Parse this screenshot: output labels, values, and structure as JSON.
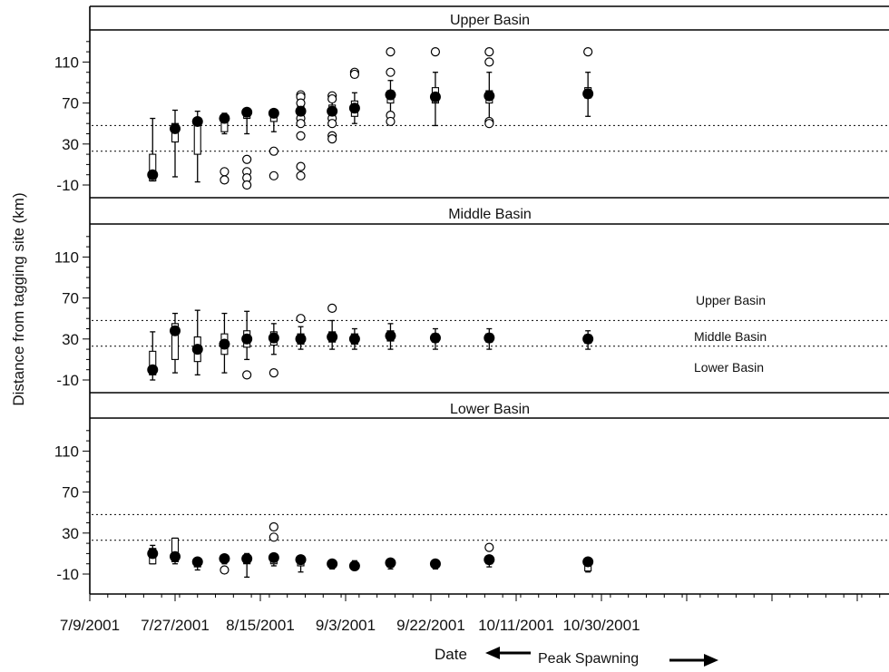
{
  "chart_data": {
    "type": "box",
    "ylabel": "Distance from tagging site (km)",
    "xlabel": "Date",
    "x_annotation": "Peak Spawning",
    "x_ticks": [
      "7/9/2001",
      "7/27/2001",
      "8/15/2001",
      "9/3/2001",
      "9/22/2001",
      "10/11/2001",
      "10/30/2001"
    ],
    "y_ticks": [
      -10,
      30,
      70,
      110
    ],
    "reference_lines": {
      "upper_boundary_km": 48,
      "lower_boundary_km": 23
    },
    "reference_labels": [
      "Upper Basin",
      "Middle Basin",
      "Lower Basin"
    ],
    "panels": [
      {
        "title": "Upper Basin",
        "points": [
          {
            "date": "2001-07-23",
            "median": 0,
            "q1": -6,
            "q3": 20,
            "wlo": -6,
            "whi": 55,
            "out": []
          },
          {
            "date": "2001-07-28",
            "median": 45,
            "q1": 32,
            "q3": 50,
            "wlo": -2,
            "whi": 63,
            "out": []
          },
          {
            "date": "2001-08-02",
            "median": 52,
            "q1": 20,
            "q3": 55,
            "wlo": -7,
            "whi": 62,
            "out": []
          },
          {
            "date": "2001-08-08",
            "median": 55,
            "q1": 42,
            "q3": 57,
            "wlo": 40,
            "whi": 60,
            "out": [
              3,
              -5
            ]
          },
          {
            "date": "2001-08-13",
            "median": 61,
            "q1": 55,
            "q3": 63,
            "wlo": 40,
            "whi": 64,
            "out": [
              15,
              3,
              -3,
              -10
            ]
          },
          {
            "date": "2001-08-19",
            "median": 60,
            "q1": 52,
            "q3": 62,
            "wlo": 42,
            "whi": 63,
            "out": [
              23,
              -1
            ]
          },
          {
            "date": "2001-08-25",
            "median": 62,
            "q1": 55,
            "q3": 68,
            "wlo": 50,
            "whi": 75,
            "out": [
              78,
              76,
              70,
              55,
              50,
              38,
              8,
              -1
            ]
          },
          {
            "date": "2001-09-01",
            "median": 62,
            "q1": 55,
            "q3": 68,
            "wlo": 50,
            "whi": 75,
            "out": [
              77,
              74,
              55,
              50,
              38,
              35
            ]
          },
          {
            "date": "2001-09-06",
            "median": 65,
            "q1": 57,
            "q3": 72,
            "wlo": 50,
            "whi": 80,
            "out": [
              100,
              98
            ]
          },
          {
            "date": "2001-09-14",
            "median": 78,
            "q1": 70,
            "q3": 82,
            "wlo": 60,
            "whi": 92,
            "out": [
              120,
              100,
              58,
              52
            ]
          },
          {
            "date": "2001-09-24",
            "median": 76,
            "q1": 70,
            "q3": 85,
            "wlo": 48,
            "whi": 100,
            "out": [
              120
            ]
          },
          {
            "date": "2001-10-06",
            "median": 77,
            "q1": 70,
            "q3": 82,
            "wlo": 48,
            "whi": 100,
            "out": [
              120,
              110,
              52,
              50
            ]
          },
          {
            "date": "2001-10-28",
            "median": 79,
            "q1": 75,
            "q3": 85,
            "wlo": 57,
            "whi": 100,
            "out": [
              120
            ]
          }
        ]
      },
      {
        "title": "Middle Basin",
        "points": [
          {
            "date": "2001-07-23",
            "median": 0,
            "q1": -5,
            "q3": 18,
            "wlo": -10,
            "whi": 37,
            "out": []
          },
          {
            "date": "2001-07-28",
            "median": 38,
            "q1": 10,
            "q3": 45,
            "wlo": -3,
            "whi": 55,
            "out": []
          },
          {
            "date": "2001-08-02",
            "median": 20,
            "q1": 8,
            "q3": 32,
            "wlo": -5,
            "whi": 58,
            "out": []
          },
          {
            "date": "2001-08-08",
            "median": 25,
            "q1": 15,
            "q3": 35,
            "wlo": -3,
            "whi": 55,
            "out": []
          },
          {
            "date": "2001-08-13",
            "median": 30,
            "q1": 22,
            "q3": 38,
            "wlo": 10,
            "whi": 57,
            "out": [
              -5
            ]
          },
          {
            "date": "2001-08-19",
            "median": 31,
            "q1": 24,
            "q3": 37,
            "wlo": 15,
            "whi": 45,
            "out": [
              -3
            ]
          },
          {
            "date": "2001-08-25",
            "median": 30,
            "q1": 25,
            "q3": 35,
            "wlo": 20,
            "whi": 42,
            "out": [
              50
            ]
          },
          {
            "date": "2001-09-01",
            "median": 32,
            "q1": 27,
            "q3": 37,
            "wlo": 20,
            "whi": 48,
            "out": [
              60
            ]
          },
          {
            "date": "2001-09-06",
            "median": 30,
            "q1": 25,
            "q3": 35,
            "wlo": 20,
            "whi": 40,
            "out": []
          },
          {
            "date": "2001-09-14",
            "median": 33,
            "q1": 28,
            "q3": 38,
            "wlo": 20,
            "whi": 45,
            "out": []
          },
          {
            "date": "2001-09-24",
            "median": 31,
            "q1": 27,
            "q3": 35,
            "wlo": 20,
            "whi": 40,
            "out": []
          },
          {
            "date": "2001-10-06",
            "median": 31,
            "q1": 27,
            "q3": 35,
            "wlo": 20,
            "whi": 40,
            "out": []
          },
          {
            "date": "2001-10-28",
            "median": 30,
            "q1": 26,
            "q3": 34,
            "wlo": 20,
            "whi": 38,
            "out": []
          }
        ]
      },
      {
        "title": "Lower Basin",
        "points": [
          {
            "date": "2001-07-23",
            "median": 10,
            "q1": 0,
            "q3": 15,
            "wlo": 0,
            "whi": 18,
            "out": []
          },
          {
            "date": "2001-07-28",
            "median": 7,
            "q1": 2,
            "q3": 25,
            "wlo": 0,
            "whi": 25,
            "out": []
          },
          {
            "date": "2001-08-02",
            "median": 2,
            "q1": -3,
            "q3": 4,
            "wlo": -6,
            "whi": 5,
            "out": []
          },
          {
            "date": "2001-08-08",
            "median": 5,
            "q1": 2,
            "q3": 7,
            "wlo": 0,
            "whi": 8,
            "out": [
              -6
            ]
          },
          {
            "date": "2001-08-13",
            "median": 5,
            "q1": 0,
            "q3": 8,
            "wlo": -13,
            "whi": 10,
            "out": []
          },
          {
            "date": "2001-08-19",
            "median": 6,
            "q1": 0,
            "q3": 8,
            "wlo": -2,
            "whi": 9,
            "out": [
              36,
              26
            ]
          },
          {
            "date": "2001-08-25",
            "median": 4,
            "q1": -2,
            "q3": 6,
            "wlo": -8,
            "whi": 8,
            "out": []
          },
          {
            "date": "2001-09-01",
            "median": 0,
            "q1": -3,
            "q3": 2,
            "wlo": -5,
            "whi": 4,
            "out": []
          },
          {
            "date": "2001-09-06",
            "median": -2,
            "q1": -4,
            "q3": 0,
            "wlo": -5,
            "whi": 3,
            "out": []
          },
          {
            "date": "2001-09-14",
            "median": 1,
            "q1": -3,
            "q3": 3,
            "wlo": -5,
            "whi": 4,
            "out": []
          },
          {
            "date": "2001-09-24",
            "median": 0,
            "q1": -3,
            "q3": 2,
            "wlo": -5,
            "whi": 3,
            "out": []
          },
          {
            "date": "2001-10-06",
            "median": 4,
            "q1": 0,
            "q3": 6,
            "wlo": -3,
            "whi": 8,
            "out": [
              16
            ]
          },
          {
            "date": "2001-10-28",
            "median": 2,
            "q1": -7,
            "q3": 4,
            "wlo": -8,
            "whi": 5,
            "out": []
          }
        ]
      }
    ]
  }
}
